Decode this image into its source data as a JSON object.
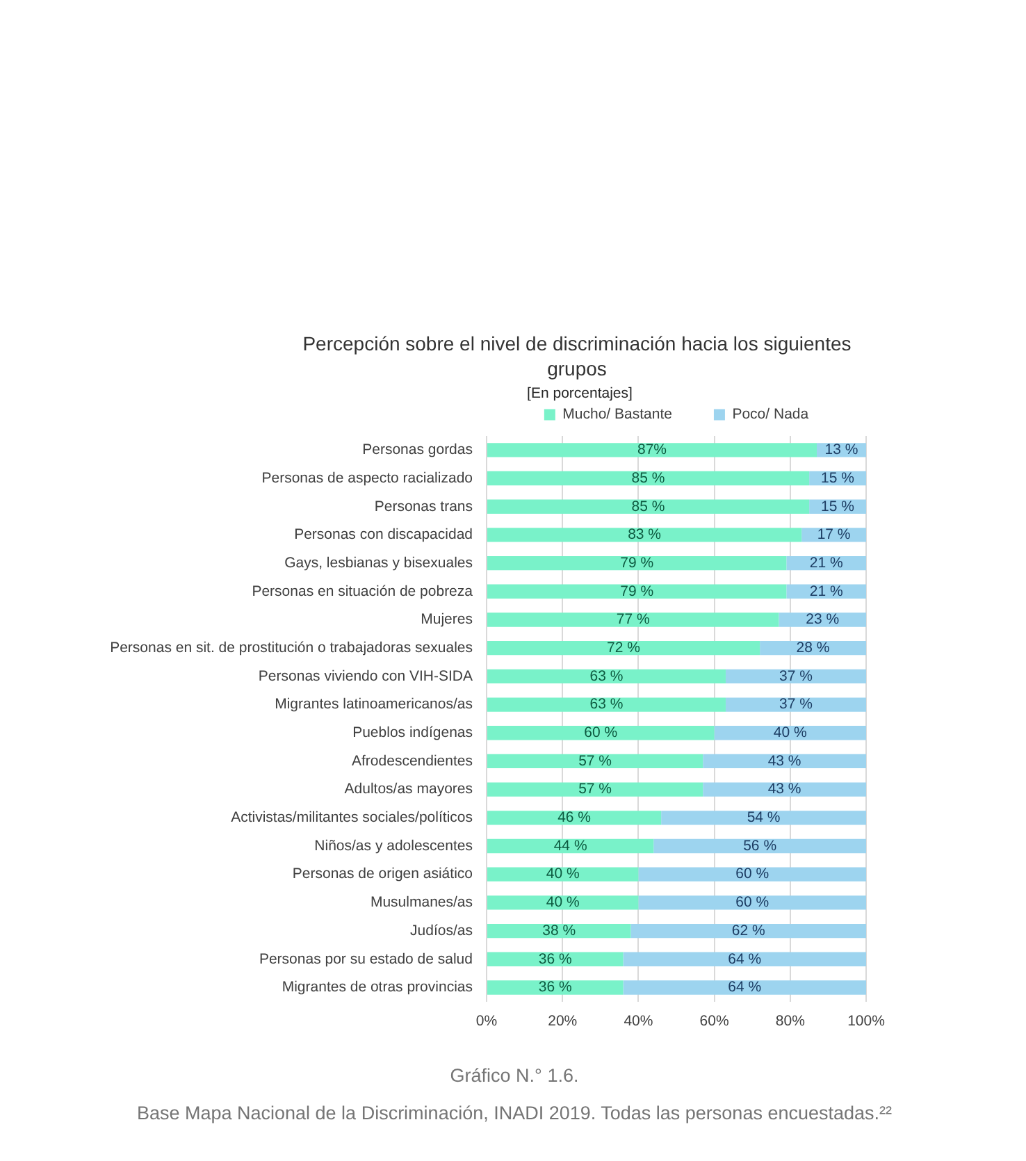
{
  "chart_data": {
    "type": "bar",
    "orientation": "horizontal",
    "stacked": true,
    "title": "Percepción sobre el nivel de discriminación hacia los siguientes grupos",
    "subtitle": "[En porcentajes]",
    "categories": [
      "Personas gordas",
      "Personas de aspecto racializado",
      "Personas trans",
      "Personas con discapacidad",
      "Gays, lesbianas y bisexuales",
      "Personas en situación de pobreza",
      "Mujeres",
      "Personas en sit. de prostitución o trabajadoras sexuales",
      "Personas viviendo con VIH-SIDA",
      "Migrantes latinoamericanos/as",
      "Pueblos indígenas",
      "Afrodescendientes",
      "Adultos/as mayores",
      "Activistas/militantes sociales/políticos",
      "Niños/as y adolescentes",
      "Personas de origen asiático",
      "Musulmanes/as",
      "Judíos/as",
      "Personas por su estado de salud",
      "Migrantes de otras provincias"
    ],
    "series": [
      {
        "name": "Mucho/ Bastante",
        "color": "#79f2c9",
        "values": [
          87,
          85,
          85,
          83,
          79,
          79,
          77,
          72,
          63,
          63,
          60,
          57,
          57,
          46,
          44,
          40,
          40,
          38,
          36,
          36
        ],
        "value_labels": [
          "87%",
          "85 %",
          "85 %",
          "83 %",
          "79 %",
          "79 %",
          "77 %",
          "72 %",
          "63 %",
          "63 %",
          "60 %",
          "57 %",
          "57 %",
          "46 %",
          "44 %",
          "40 %",
          "40 %",
          "38 %",
          "36 %",
          "36 %"
        ]
      },
      {
        "name": "Poco/ Nada",
        "color": "#9dd4ef",
        "values": [
          13,
          15,
          15,
          17,
          21,
          21,
          23,
          28,
          37,
          37,
          40,
          43,
          43,
          54,
          56,
          60,
          60,
          62,
          64,
          64
        ],
        "value_labels": [
          "13 %",
          "15 %",
          "15 %",
          "17 %",
          "21 %",
          "21 %",
          "23 %",
          "28 %",
          "37 %",
          "37 %",
          "40 %",
          "43 %",
          "43 %",
          "54 %",
          "56 %",
          "60 %",
          "60 %",
          "62 %",
          "64 %",
          "64 %"
        ]
      }
    ],
    "xlim": [
      0,
      100
    ],
    "xticks": [
      {
        "value": 0,
        "label": "0%"
      },
      {
        "value": 20,
        "label": "20%"
      },
      {
        "value": 40,
        "label": "40%"
      },
      {
        "value": 60,
        "label": "60%"
      },
      {
        "value": 80,
        "label": "80%"
      },
      {
        "value": 100,
        "label": "100%"
      }
    ],
    "grid": "x",
    "legend": "top",
    "annotations": [
      "Gráfico N.° 1.6.",
      "Base Mapa Nacional de la Discriminación, INADI 2019. Todas las personas encuestadas.²²"
    ]
  }
}
